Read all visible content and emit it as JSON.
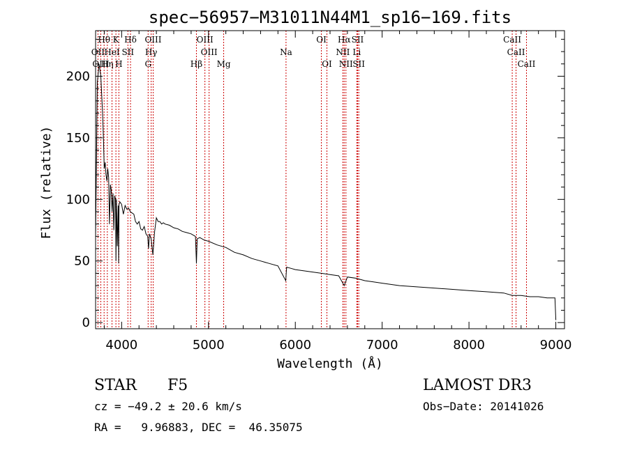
{
  "chart_data": {
    "type": "line",
    "title": "spec−56957−M31011N44M1_sp16−169.fits",
    "xlabel": "Wavelength (Å)",
    "ylabel": "Flux (relative)",
    "xlim": [
      3700,
      9100
    ],
    "ylim": [
      -5,
      237
    ],
    "xticks": [
      4000,
      5000,
      6000,
      7000,
      8000,
      9000
    ],
    "yticks": [
      0,
      50,
      100,
      150,
      200
    ],
    "grid": false,
    "series": [
      {
        "name": "spectrum",
        "x": [
          3700,
          3720,
          3740,
          3760,
          3780,
          3790,
          3800,
          3810,
          3820,
          3830,
          3840,
          3850,
          3860,
          3870,
          3880,
          3890,
          3900,
          3910,
          3920,
          3930,
          3935,
          3940,
          3950,
          3960,
          3965,
          3970,
          3980,
          4000,
          4020,
          4040,
          4060,
          4080,
          4100,
          4120,
          4140,
          4160,
          4180,
          4200,
          4220,
          4240,
          4260,
          4280,
          4300,
          4310,
          4320,
          4340,
          4360,
          4380,
          4400,
          4420,
          4440,
          4460,
          4480,
          4500,
          4550,
          4600,
          4650,
          4700,
          4750,
          4800,
          4850,
          4861,
          4870,
          4900,
          4950,
          5000,
          5100,
          5200,
          5300,
          5400,
          5500,
          5600,
          5700,
          5800,
          5890,
          5900,
          5950,
          6000,
          6100,
          6200,
          6300,
          6400,
          6500,
          6563,
          6600,
          6700,
          6800,
          6900,
          7000,
          7200,
          7400,
          7600,
          7800,
          8000,
          8200,
          8400,
          8500,
          8600,
          8700,
          8800,
          8900,
          8990,
          9000
        ],
        "y": [
          70,
          195,
          210,
          200,
          170,
          150,
          125,
          130,
          120,
          115,
          125,
          118,
          80,
          112,
          108,
          90,
          105,
          75,
          103,
          100,
          50,
          100,
          62,
          95,
          48,
          96,
          98,
          96,
          88,
          95,
          92,
          93,
          90,
          89,
          88,
          82,
          80,
          82,
          76,
          75,
          78,
          72,
          70,
          60,
          72,
          68,
          55,
          74,
          85,
          82,
          82,
          80,
          81,
          80,
          79,
          77,
          76,
          74,
          73,
          72,
          70,
          48,
          68,
          69,
          67,
          66,
          63,
          61,
          57,
          55,
          52,
          50,
          48,
          46,
          34,
          45,
          44,
          43,
          42,
          41,
          40,
          39,
          38,
          30,
          37,
          36,
          34,
          33,
          32,
          30,
          29,
          28,
          27,
          26,
          25,
          24,
          22,
          22,
          21,
          21,
          20,
          20,
          2
        ]
      }
    ],
    "annotations": [
      {
        "label": "Hθ",
        "x": 3798,
        "row": 0
      },
      {
        "label": "K",
        "x": 3934,
        "row": 0
      },
      {
        "label": "Hδ",
        "x": 4102,
        "row": 0
      },
      {
        "label": "OIII",
        "x": 4363,
        "row": 0
      },
      {
        "label": "OIII",
        "x": 4959,
        "row": 0
      },
      {
        "label": "OI",
        "x": 6300,
        "row": 0
      },
      {
        "label": "Hα",
        "x": 6563,
        "row": 0
      },
      {
        "label": "SII",
        "x": 6717,
        "row": 0
      },
      {
        "label": "CaII",
        "x": 8498,
        "row": 0
      },
      {
        "label": "OII",
        "x": 3727,
        "row": 1
      },
      {
        "label": "HeI",
        "x": 3889,
        "row": 1
      },
      {
        "label": "SII",
        "x": 4072,
        "row": 1
      },
      {
        "label": "Hγ",
        "x": 4340,
        "row": 1
      },
      {
        "label": "OIII",
        "x": 5007,
        "row": 1
      },
      {
        "label": "NII",
        "x": 6548,
        "row": 1
      },
      {
        "label": "Li",
        "x": 6708,
        "row": 1
      },
      {
        "label": "CaII",
        "x": 8542,
        "row": 1
      },
      {
        "label": "OIII",
        "x": 3760,
        "row": 2
      },
      {
        "label": "Hη",
        "x": 3835,
        "row": 2
      },
      {
        "label": "H",
        "x": 3968,
        "row": 2
      },
      {
        "label": "G",
        "x": 4305,
        "row": 2
      },
      {
        "label": "Hβ",
        "x": 4861,
        "row": 2
      },
      {
        "label": "Mg",
        "x": 5175,
        "row": 2
      },
      {
        "label": "Na",
        "x": 5893,
        "row": 1
      },
      {
        "label": "OI",
        "x": 6364,
        "row": 2
      },
      {
        "label": "NII",
        "x": 6583,
        "row": 2
      },
      {
        "label": "SII",
        "x": 6731,
        "row": 2
      },
      {
        "label": "CaII",
        "x": 8662,
        "row": 2
      }
    ],
    "line_color": "#000000",
    "marker_color": "#cc0000"
  },
  "info": {
    "object_class": "STAR",
    "subclass": "F5",
    "survey": "LAMOST DR3",
    "velocity": "cz = −49.2 ± 20.6 km/s",
    "obs_date": "Obs−Date: 20141026",
    "coordinates": "RA =   9.96883, DEC =  46.35075"
  }
}
